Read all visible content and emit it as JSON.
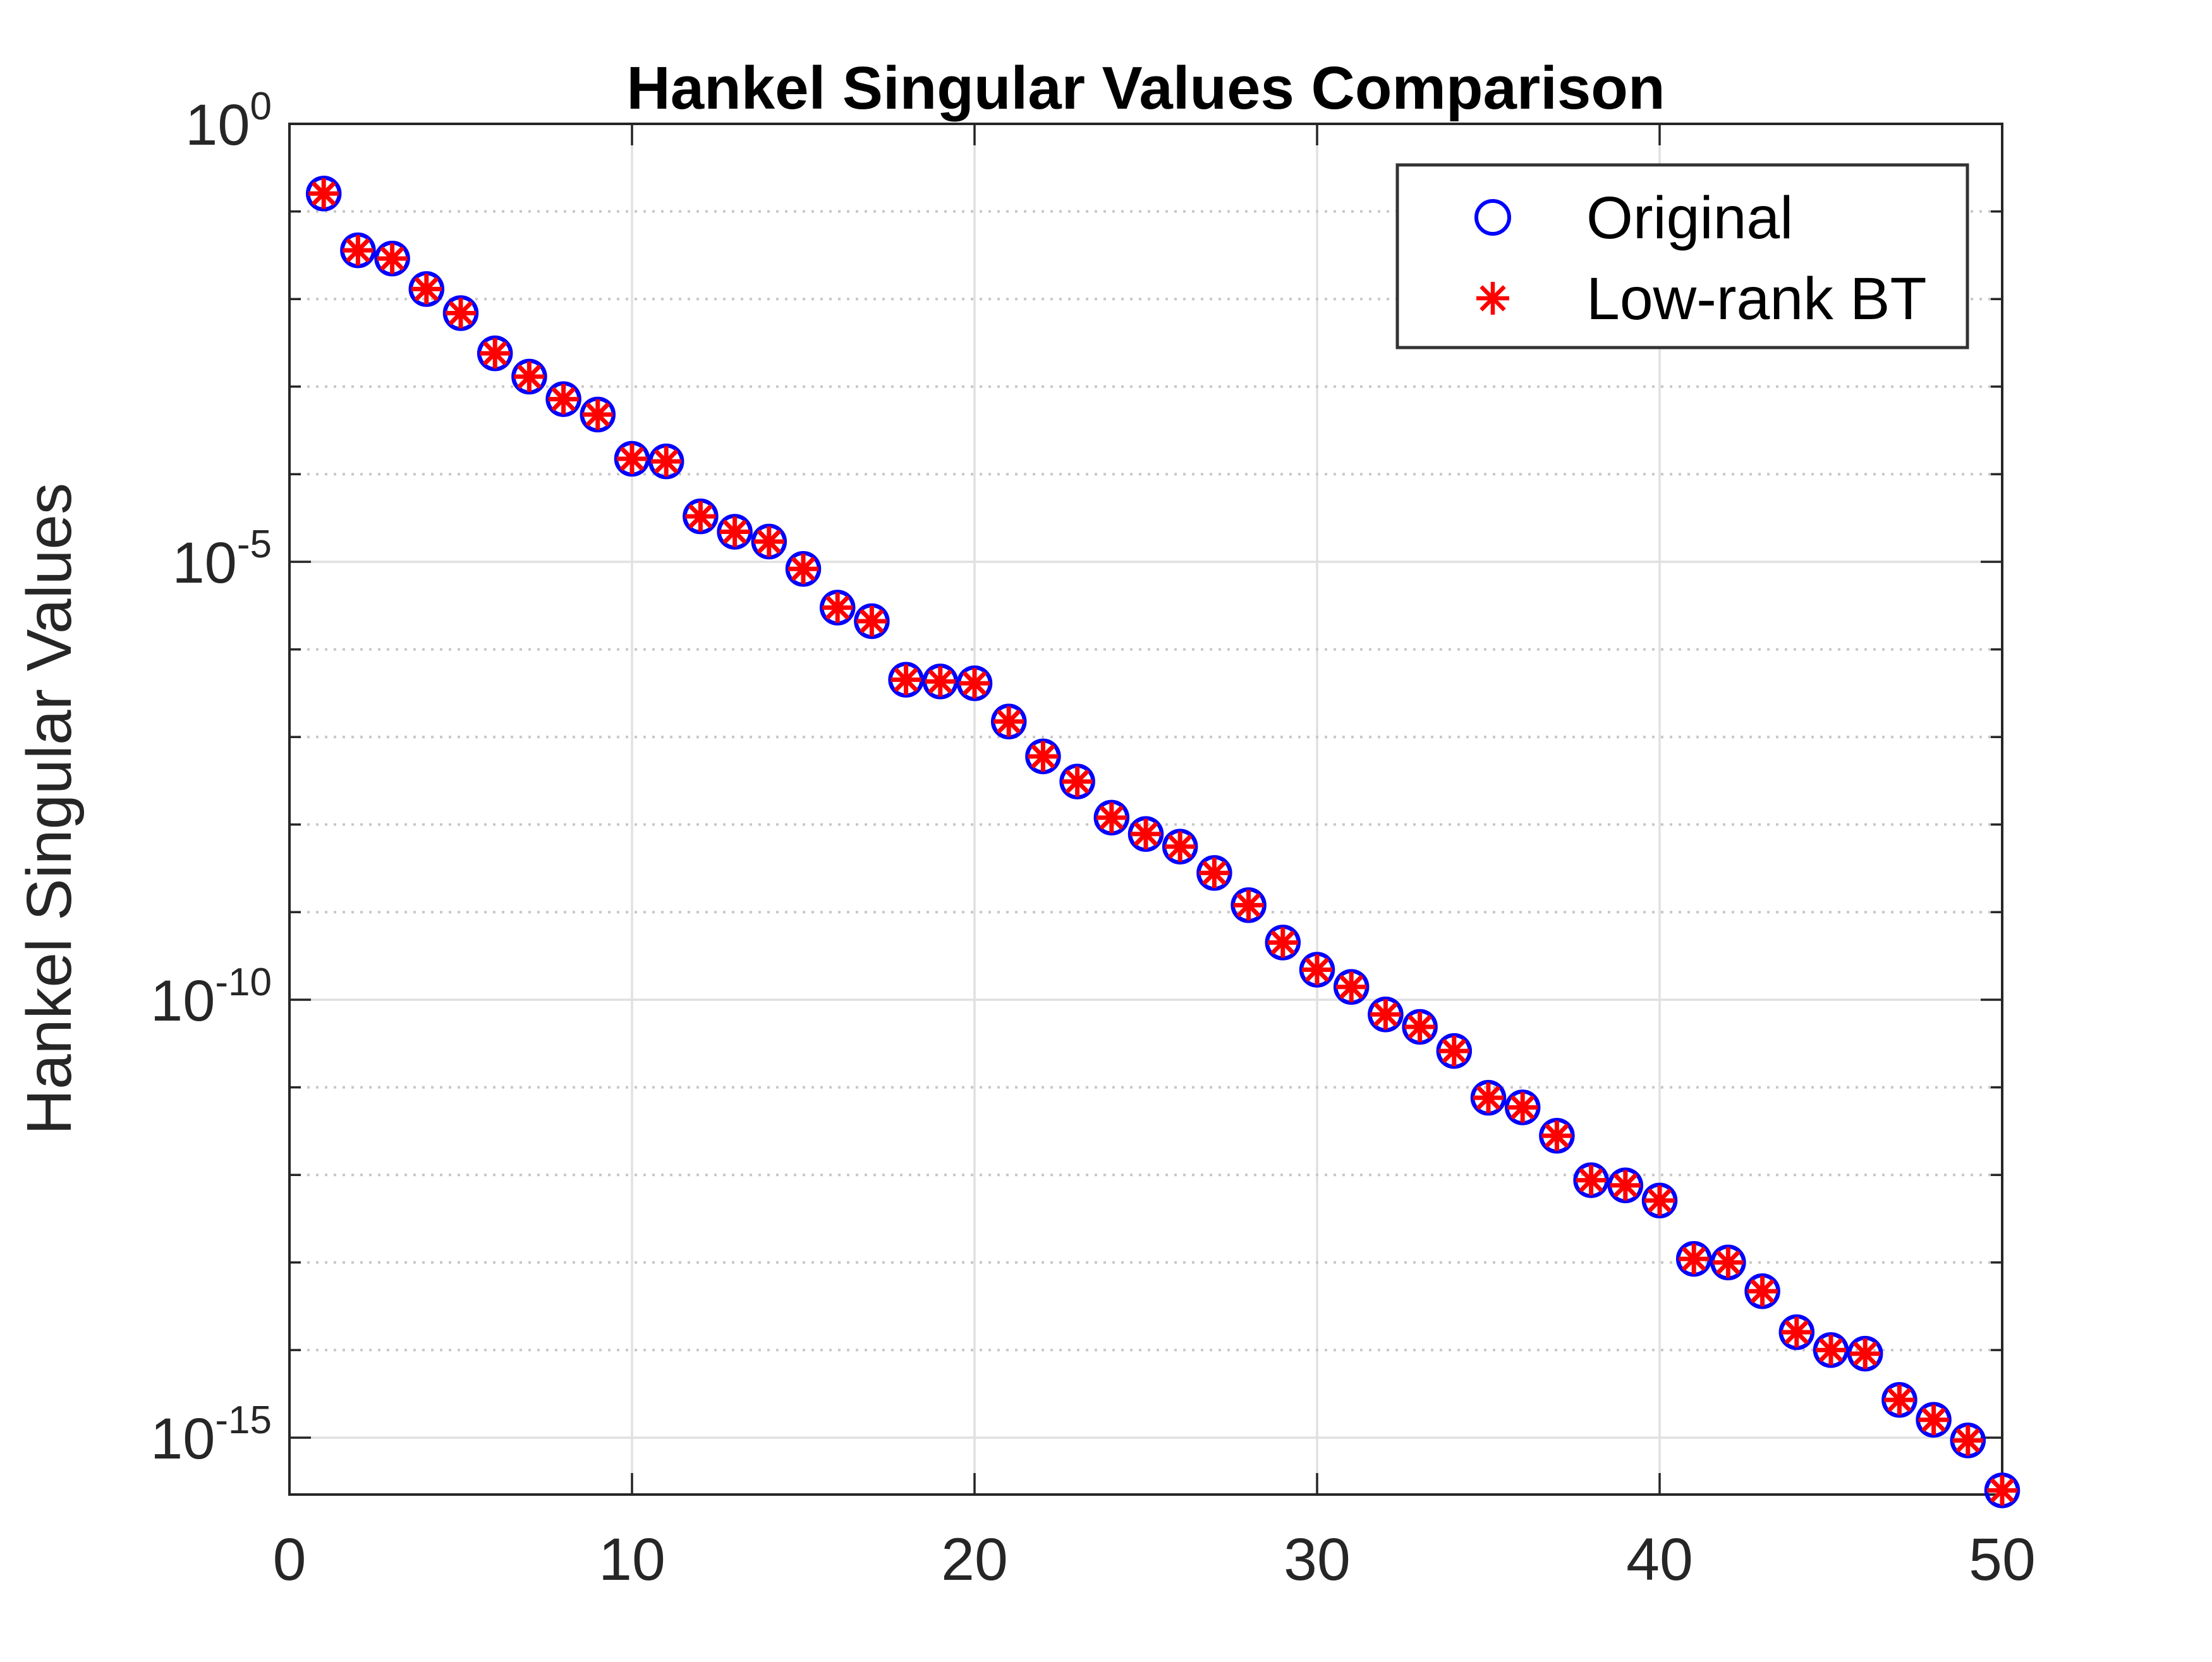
{
  "figure": {
    "title": "Hankel Singular Values Comparison"
  },
  "axes": {
    "ylabel": "Hankel Singular Values",
    "xlim": [
      0,
      50
    ],
    "xticks": [
      0,
      10,
      20,
      30,
      40,
      50
    ],
    "y_major_tick_exponents": [
      0,
      -5,
      -10,
      -15
    ],
    "y_minor_tick_exponent_step": 1,
    "ylim_exponents": [
      0,
      -15.65
    ],
    "grid": "on",
    "frame_color": "#262626",
    "major_grid_color": "#e0e0e0",
    "minor_grid_color": "#c7c7c7",
    "tick_label_color": "#262626",
    "title_color": "#000000"
  },
  "legend": {
    "position": "north-east-inside",
    "border_color": "#333333",
    "background": "#ffffff",
    "entries": [
      {
        "label": "Original",
        "marker": "circle-icon",
        "color": "#0000ff"
      },
      {
        "label": "Low-rank BT",
        "marker": "asterisk-icon",
        "color": "#ff0000"
      }
    ]
  },
  "chart_data": {
    "type": "scatter",
    "title": "Hankel Singular Values Comparison",
    "xlabel": "",
    "ylabel": "Hankel Singular Values",
    "x_range": [
      0,
      50
    ],
    "y_scale": "log10",
    "y_range": [
      2.2e-16,
      1
    ],
    "legend_position": "upper right",
    "grid": true,
    "x": [
      1,
      2,
      3,
      4,
      5,
      6,
      7,
      8,
      9,
      10,
      11,
      12,
      13,
      14,
      15,
      16,
      17,
      18,
      19,
      20,
      21,
      22,
      23,
      24,
      25,
      26,
      27,
      28,
      29,
      30,
      31,
      32,
      33,
      34,
      35,
      36,
      37,
      38,
      39,
      40,
      41,
      42,
      43,
      44,
      45,
      46,
      47,
      48,
      49,
      50
    ],
    "series": [
      {
        "name": "Original",
        "marker": "o",
        "color": "#0000ff",
        "values": [
          0.16,
          0.036,
          0.029,
          0.013,
          0.0069,
          0.0024,
          0.0013,
          0.00072,
          0.00048,
          0.00015,
          0.00014,
          3.3e-05,
          2.2e-05,
          1.7e-05,
          8.3e-06,
          3e-06,
          2.1e-06,
          4.5e-07,
          4.3e-07,
          4.1e-07,
          1.5e-07,
          6e-08,
          3.1e-08,
          1.2e-08,
          7.8e-09,
          5.6e-09,
          2.8e-09,
          1.2e-09,
          4.5e-10,
          2.2e-10,
          1.4e-10,
          6.8e-11,
          4.9e-11,
          2.6e-11,
          7.6e-12,
          5.9e-12,
          2.8e-12,
          8.7e-13,
          7.6e-13,
          5.1e-13,
          1.1e-13,
          1e-13,
          4.7e-14,
          1.6e-14,
          1e-14,
          9.1e-15,
          2.7e-15,
          1.6e-15,
          9.3e-16,
          2.5e-16
        ]
      },
      {
        "name": "Low-rank BT",
        "marker": "*",
        "color": "#ff0000",
        "values": [
          0.16,
          0.036,
          0.029,
          0.013,
          0.0069,
          0.0024,
          0.0013,
          0.00072,
          0.00048,
          0.00015,
          0.00014,
          3.3e-05,
          2.2e-05,
          1.7e-05,
          8.3e-06,
          3e-06,
          2.1e-06,
          4.5e-07,
          4.3e-07,
          4.1e-07,
          1.5e-07,
          6e-08,
          3.1e-08,
          1.2e-08,
          7.8e-09,
          5.6e-09,
          2.8e-09,
          1.2e-09,
          4.5e-10,
          2.2e-10,
          1.4e-10,
          6.8e-11,
          4.9e-11,
          2.6e-11,
          7.6e-12,
          5.9e-12,
          2.8e-12,
          8.7e-13,
          7.6e-13,
          5.1e-13,
          1.1e-13,
          1e-13,
          4.7e-14,
          1.6e-14,
          1e-14,
          9.1e-15,
          2.7e-15,
          1.6e-15,
          9.3e-16,
          2.5e-16
        ]
      }
    ]
  }
}
